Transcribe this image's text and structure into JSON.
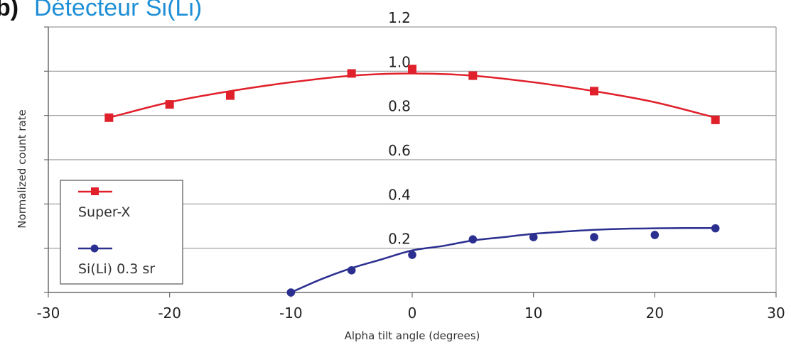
{
  "panel_label": "b)",
  "colors": {
    "series_1": "#e0202a",
    "series_2": "#2b2f8f",
    "title": "#1e8fd6",
    "grid": "#9a9a9a"
  },
  "chart_data": {
    "type": "scatter",
    "title": "Détecteur Si(Li)",
    "xlabel": "Alpha tilt angle (degrees)",
    "ylabel": "Normalized count rate",
    "xlim": [
      -30,
      30
    ],
    "ylim": [
      0,
      1.2
    ],
    "x_ticks": [
      "-30",
      "-20",
      "-10",
      "0",
      "10",
      "20",
      "30"
    ],
    "y_ticks": [
      "0.2",
      "0.4",
      "0.6",
      "0.8",
      "1.0",
      "1.2"
    ],
    "grid": "horizontal",
    "legend_position": "bottom-left",
    "series": [
      {
        "name": "Super-X",
        "marker": "square",
        "color": "#e0202a",
        "x": [
          -25,
          -20,
          -15,
          -5,
          0,
          5,
          15,
          25
        ],
        "y": [
          0.79,
          0.85,
          0.89,
          0.99,
          1.01,
          0.98,
          0.91,
          0.78
        ],
        "fit": {
          "x": [
            -25,
            -20,
            -15,
            -10,
            -5,
            0,
            5,
            10,
            15,
            20,
            25
          ],
          "y": [
            0.79,
            0.86,
            0.91,
            0.95,
            0.98,
            0.99,
            0.98,
            0.95,
            0.91,
            0.86,
            0.79
          ]
        }
      },
      {
        "name": "Si(Li) 0.3 sr",
        "marker": "circle",
        "color": "#2b2f8f",
        "x": [
          -10,
          -5,
          0,
          5,
          10,
          15,
          20,
          25
        ],
        "y": [
          0.0,
          0.1,
          0.17,
          0.24,
          0.25,
          0.25,
          0.26,
          0.29
        ],
        "fit": {
          "x": [
            -10,
            -7.5,
            -5,
            -2.5,
            0,
            2.5,
            5,
            7.5,
            10,
            12.5,
            15,
            17.5,
            20,
            22.5,
            25
          ],
          "y": [
            0.0,
            0.06,
            0.11,
            0.15,
            0.19,
            0.21,
            0.235,
            0.25,
            0.265,
            0.275,
            0.283,
            0.288,
            0.29,
            0.291,
            0.291
          ]
        }
      }
    ]
  }
}
